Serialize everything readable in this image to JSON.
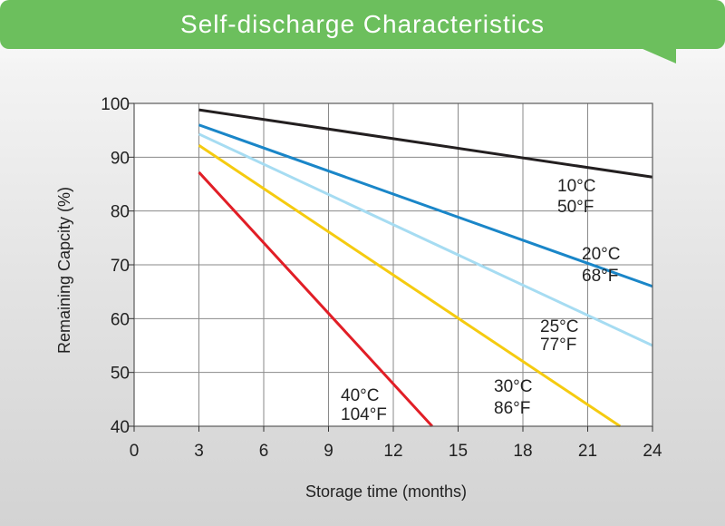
{
  "title": "Self-discharge Characteristics",
  "chart_data": {
    "type": "line",
    "title": "Self-discharge Characteristics",
    "xlabel": "Storage time (months)",
    "ylabel": "Remaining Capcity (%)",
    "xlim": [
      0,
      24
    ],
    "ylim": [
      40,
      100
    ],
    "xticks": [
      "0",
      "3",
      "6",
      "9",
      "12",
      "15",
      "18",
      "21",
      "24"
    ],
    "yticks": [
      "40",
      "50",
      "60",
      "70",
      "80",
      "90",
      "100"
    ],
    "grid": true,
    "series": [
      {
        "label_top": "10°C",
        "label_bottom": "50°F",
        "color": "#231f20",
        "points": [
          [
            3,
            98.8
          ],
          [
            24,
            86.3
          ]
        ]
      },
      {
        "label_top": "20°C",
        "label_bottom": "68°F",
        "color": "#1a86c8",
        "points": [
          [
            3,
            96.0
          ],
          [
            24,
            66.0
          ]
        ]
      },
      {
        "label_top": "25°C",
        "label_bottom": "77°F",
        "color": "#a6dcf2",
        "points": [
          [
            3,
            94.3
          ],
          [
            24,
            55.0
          ]
        ]
      },
      {
        "label_top": "30°C",
        "label_bottom": "86°F",
        "color": "#f5cb10",
        "points": [
          [
            3,
            92.2
          ],
          [
            22.5,
            40.0
          ]
        ]
      },
      {
        "label_top": "40°C",
        "label_bottom": "104°F",
        "color": "#e11e26",
        "points": [
          [
            3,
            87.2
          ],
          [
            13.8,
            40.0
          ]
        ]
      }
    ]
  }
}
